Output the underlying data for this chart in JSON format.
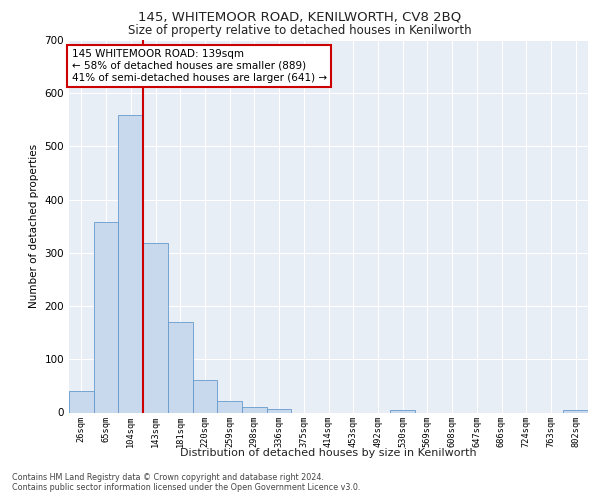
{
  "title1": "145, WHITEMOOR ROAD, KENILWORTH, CV8 2BQ",
  "title2": "Size of property relative to detached houses in Kenilworth",
  "xlabel": "Distribution of detached houses by size in Kenilworth",
  "ylabel": "Number of detached properties",
  "bar_labels": [
    "26sqm",
    "65sqm",
    "104sqm",
    "143sqm",
    "181sqm",
    "220sqm",
    "259sqm",
    "298sqm",
    "336sqm",
    "375sqm",
    "414sqm",
    "453sqm",
    "492sqm",
    "530sqm",
    "569sqm",
    "608sqm",
    "647sqm",
    "686sqm",
    "724sqm",
    "763sqm",
    "802sqm"
  ],
  "bar_values": [
    40,
    358,
    560,
    318,
    170,
    62,
    22,
    11,
    6,
    0,
    0,
    0,
    0,
    5,
    0,
    0,
    0,
    0,
    0,
    0,
    5
  ],
  "bar_color": "#c8d9ee",
  "bar_edge_color": "#6699cc",
  "reference_line_x": 3,
  "reference_line_color": "#cc0000",
  "ylim": [
    0,
    700
  ],
  "yticks": [
    0,
    100,
    200,
    300,
    400,
    500,
    600,
    700
  ],
  "annotation_text": "145 WHITEMOOR ROAD: 139sqm\n← 58% of detached houses are smaller (889)\n41% of semi-detached houses are larger (641) →",
  "annotation_box_color": "#ffffff",
  "annotation_box_edge": "#cc0000",
  "footer_line1": "Contains HM Land Registry data © Crown copyright and database right 2024.",
  "footer_line2": "Contains public sector information licensed under the Open Government Licence v3.0.",
  "plot_bg_color": "#e8eef6",
  "grid_color": "#ffffff"
}
